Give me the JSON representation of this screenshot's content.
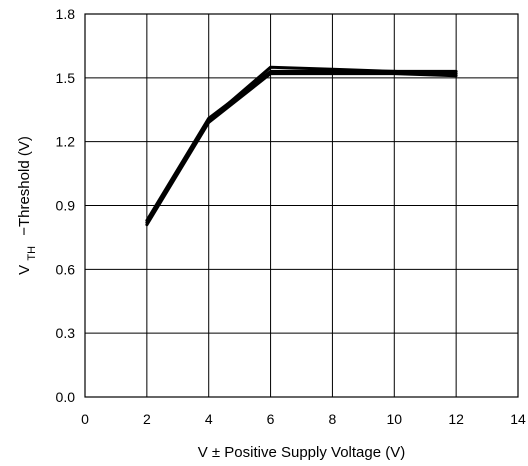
{
  "chart_data": {
    "type": "line",
    "title": "",
    "xlabel": "V ± Positive Supply Voltage (V)",
    "ylabel": {
      "main": "V",
      "subscript": "TH",
      "rest": "−Threshold (V)"
    },
    "xlim": [
      0,
      14
    ],
    "ylim": [
      0,
      1.8
    ],
    "x_ticks": [
      0,
      2,
      4,
      6,
      8,
      10,
      12,
      14
    ],
    "x_tick_labels": [
      "0",
      "2",
      "4",
      "6",
      "8",
      "10",
      "12",
      "14"
    ],
    "y_ticks": [
      0,
      0.3,
      0.6,
      0.9,
      1.2,
      1.5,
      1.8
    ],
    "y_tick_labels": [
      "0.0",
      "0.3",
      "0.6",
      "0.9",
      "1.2",
      "1.5",
      "1.8"
    ],
    "grid": true,
    "series": [
      {
        "x": [
          2,
          4,
          6,
          8,
          10,
          12
        ],
        "y": [
          0.82,
          1.3,
          1.55,
          1.54,
          1.53,
          1.53
        ]
      },
      {
        "x": [
          2,
          4,
          6,
          8,
          10,
          12
        ],
        "y": [
          0.83,
          1.31,
          1.53,
          1.53,
          1.53,
          1.52
        ]
      },
      {
        "x": [
          2,
          4,
          6,
          8,
          10,
          12
        ],
        "y": [
          0.81,
          1.29,
          1.52,
          1.52,
          1.52,
          1.51
        ]
      }
    ],
    "line_color": "#000000"
  }
}
